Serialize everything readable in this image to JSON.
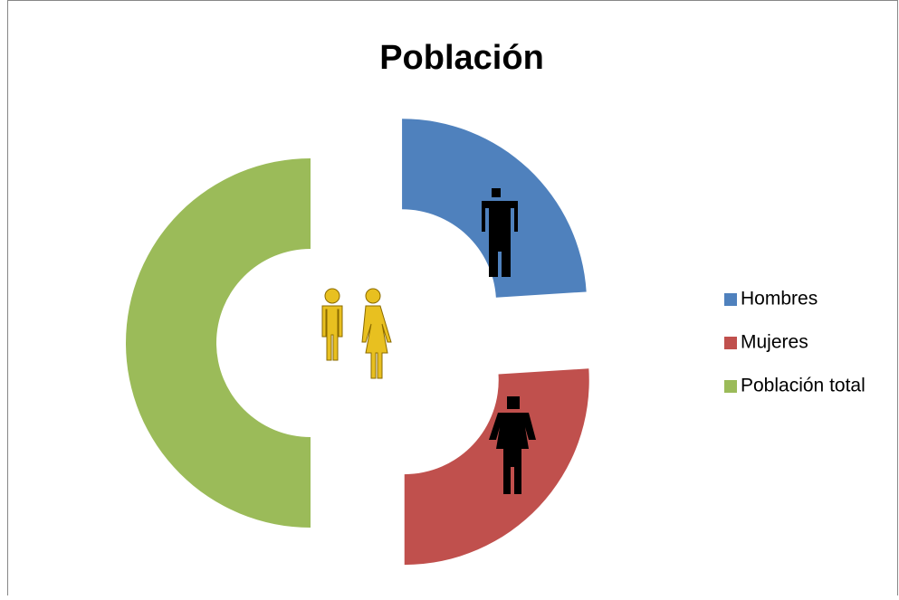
{
  "chart_data": {
    "type": "doughnut",
    "title": "Población",
    "categories": [
      "Hombres",
      "Mujeres",
      "Población total"
    ],
    "values": [
      48,
      52,
      100
    ],
    "colors": [
      "#4f81bd",
      "#c0504d",
      "#9bbb59"
    ],
    "legend": "right"
  }
}
